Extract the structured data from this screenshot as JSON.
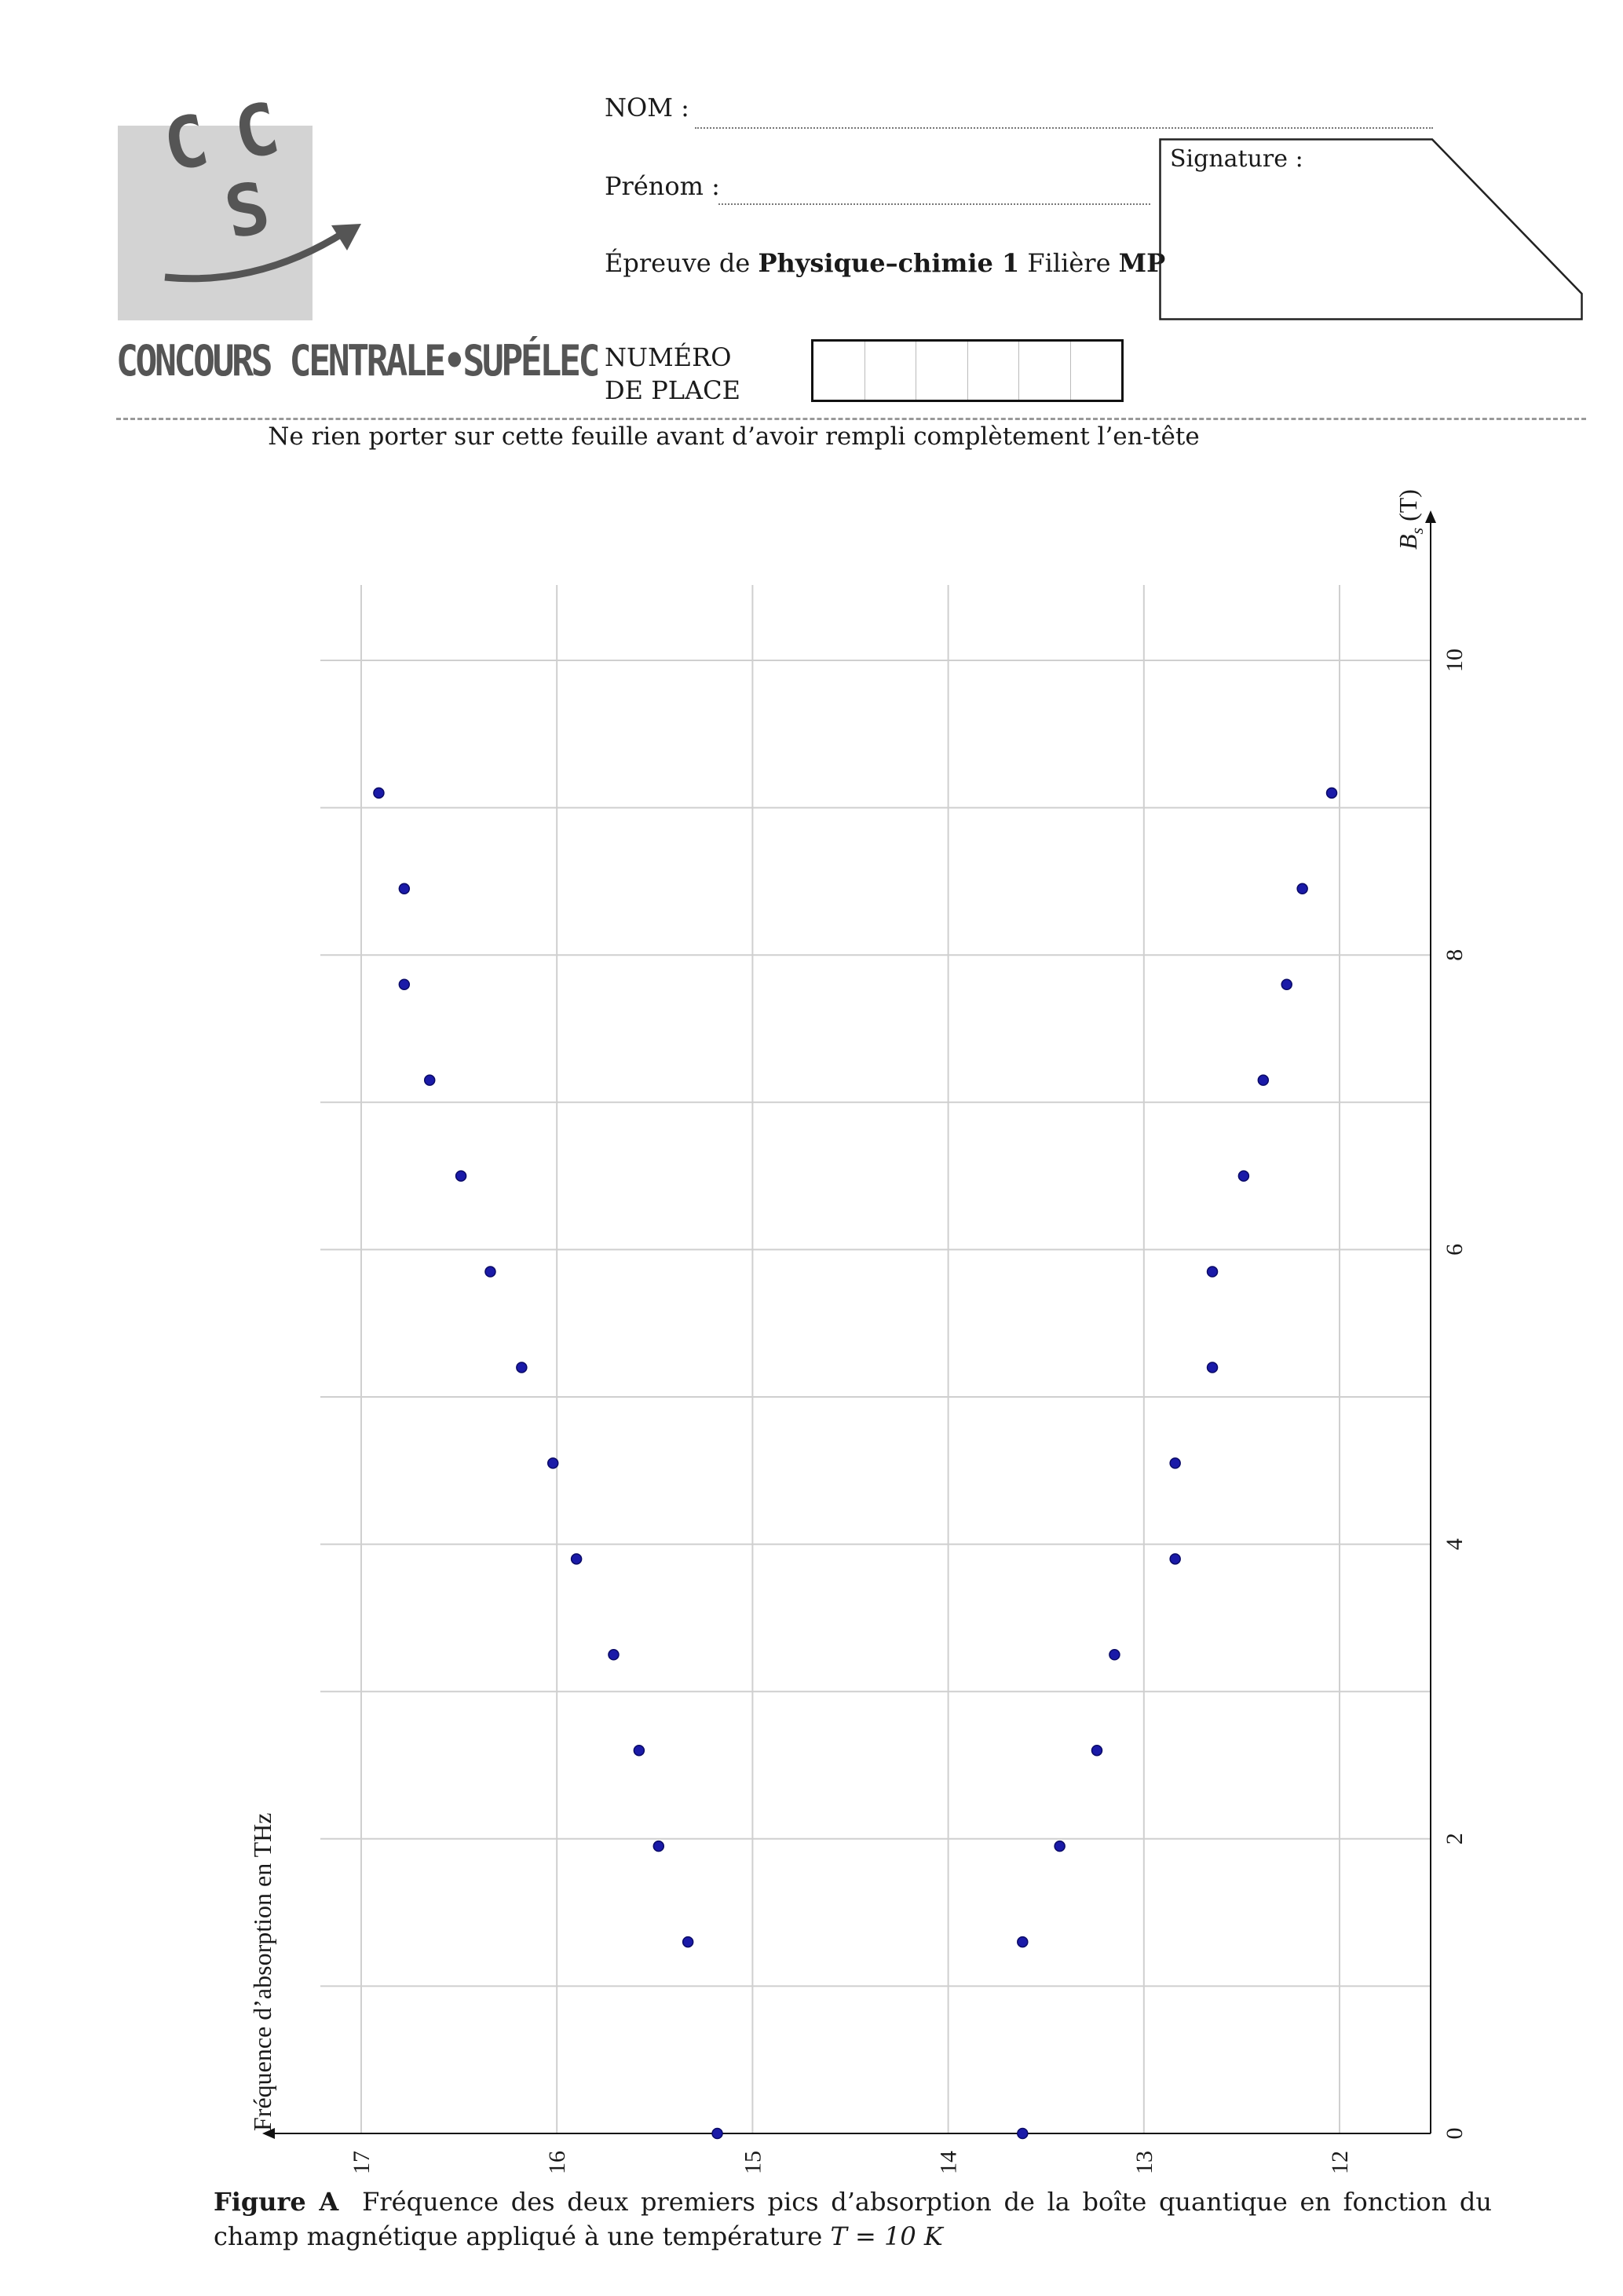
{
  "header": {
    "brand": "CONCOURS CENTRALE•SUPÉLEC",
    "logo_letters": [
      "C",
      "C",
      "S"
    ],
    "nom_label": "NOM :",
    "prenom_label": "Prénom :",
    "epreuve_prefix": "Épreuve de",
    "epreuve_subject": "Physique–chimie 1",
    "filiere_prefix": "Filière",
    "filiere": "MP",
    "signature_label": "Signature :",
    "numero_line1": "NUMÉRO",
    "numero_line2": "DE PLACE",
    "numero_cells": 6,
    "warning": "Ne rien porter sur cette feuille avant d’avoir rempli complètement l’en-tête"
  },
  "chart_data": {
    "type": "scatter",
    "orientation": "rotated 90° (frequency axis horizontal, decreasing to the right; field axis vertical, increasing upward)",
    "xlabel": "Fréquence d’absorption en THz",
    "ylabel": "B_s (T)",
    "xlim": [
      11.5,
      17.5
    ],
    "ylim": [
      0,
      10.5
    ],
    "x_ticks": [
      17,
      16,
      15,
      14,
      13,
      12
    ],
    "y_ticks": [
      0,
      2,
      4,
      6,
      8,
      10
    ],
    "grid": true,
    "point_color": "#1a1aa8",
    "series": [
      {
        "points": [
          {
            "x": 15.18,
            "y": 0.0
          },
          {
            "x": 15.33,
            "y": 1.3
          },
          {
            "x": 15.48,
            "y": 1.95
          },
          {
            "x": 15.58,
            "y": 2.6
          },
          {
            "x": 15.71,
            "y": 3.25
          },
          {
            "x": 15.9,
            "y": 3.9
          },
          {
            "x": 16.02,
            "y": 4.55
          },
          {
            "x": 16.18,
            "y": 5.2
          },
          {
            "x": 16.34,
            "y": 5.85
          },
          {
            "x": 16.49,
            "y": 6.5
          },
          {
            "x": 16.65,
            "y": 7.15
          },
          {
            "x": 16.78,
            "y": 7.8
          },
          {
            "x": 16.78,
            "y": 8.45
          },
          {
            "x": 16.91,
            "y": 9.1
          }
        ]
      },
      {
        "points": [
          {
            "x": 13.62,
            "y": 0.0
          },
          {
            "x": 13.62,
            "y": 1.3
          },
          {
            "x": 13.43,
            "y": 1.95
          },
          {
            "x": 13.24,
            "y": 2.6
          },
          {
            "x": 13.15,
            "y": 3.25
          },
          {
            "x": 12.84,
            "y": 3.9
          },
          {
            "x": 12.84,
            "y": 4.55
          },
          {
            "x": 12.65,
            "y": 5.2
          },
          {
            "x": 12.65,
            "y": 5.85
          },
          {
            "x": 12.49,
            "y": 6.5
          },
          {
            "x": 12.39,
            "y": 7.15
          },
          {
            "x": 12.27,
            "y": 7.8
          },
          {
            "x": 12.19,
            "y": 8.45
          },
          {
            "x": 12.04,
            "y": 9.1
          }
        ]
      }
    ]
  },
  "caption": {
    "label": "Figure A",
    "text_before_T": "Fréquence des deux premiers pics d’absorption de la boîte quantique en fonction du champ magnétique appliqué à une température",
    "temperature": "T = 10 K"
  }
}
